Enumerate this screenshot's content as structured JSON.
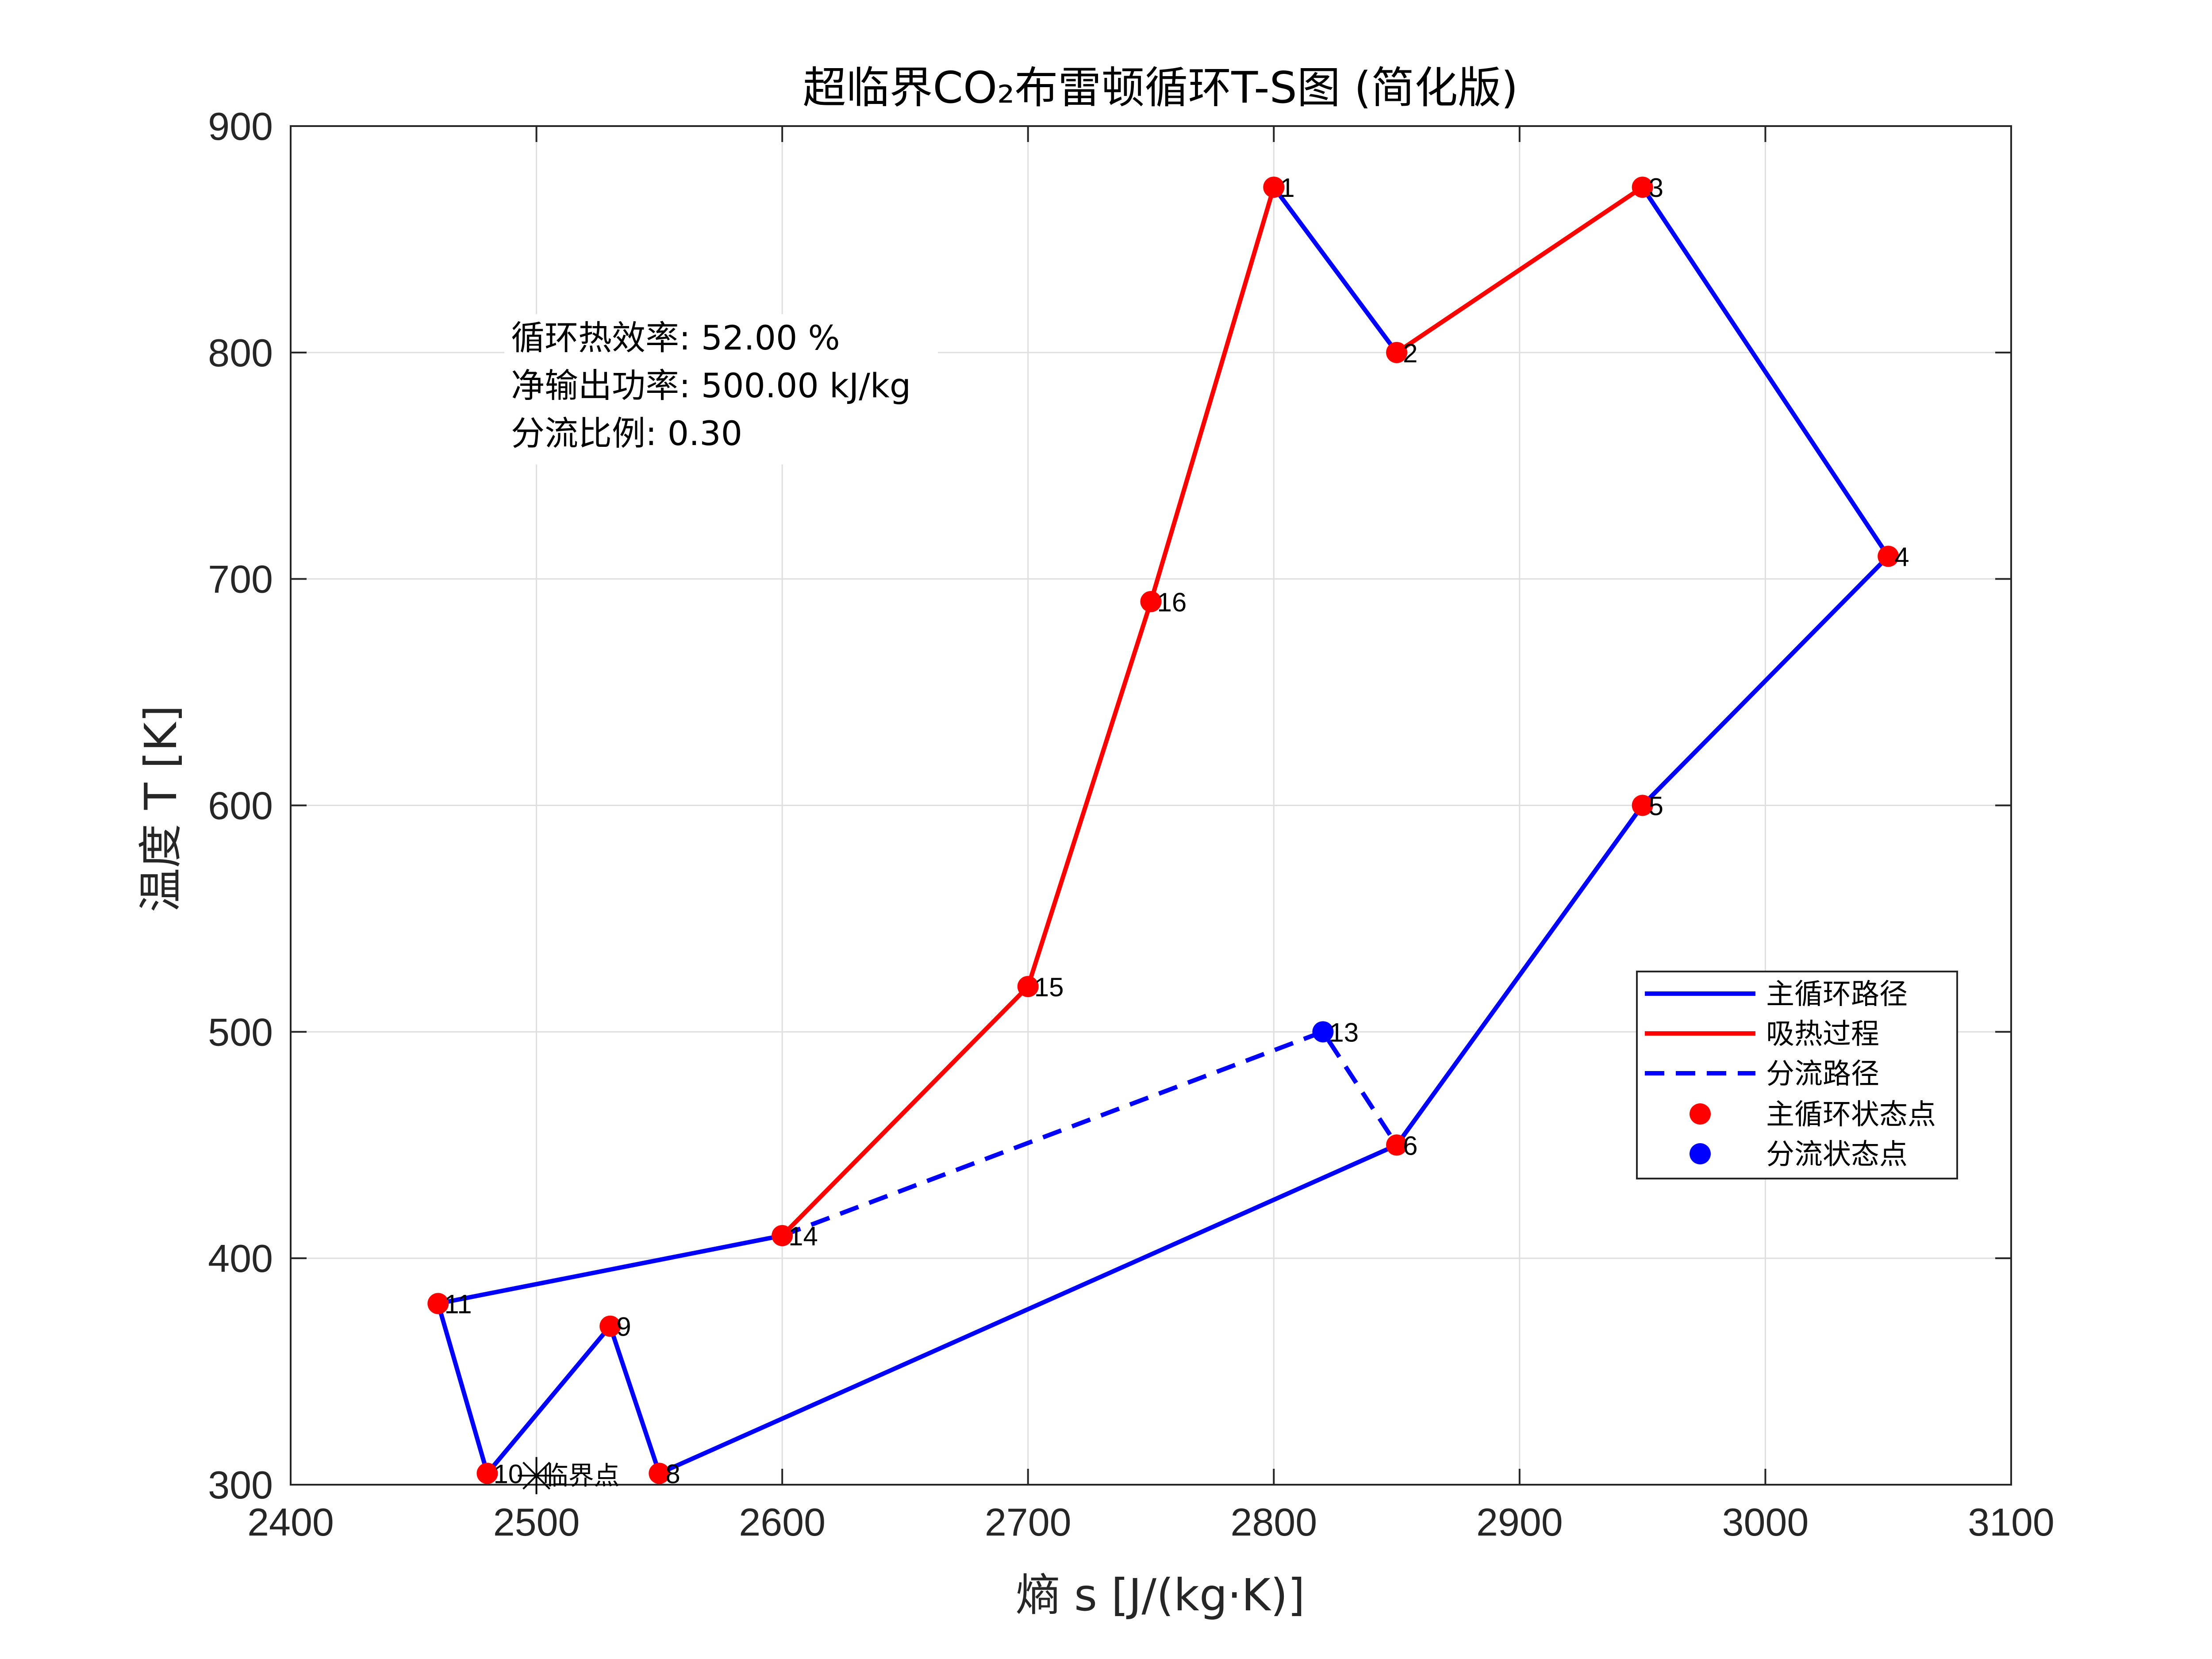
{
  "chart_data": {
    "type": "line",
    "title": "超临界CO₂布雷顿循环T-S图 (简化版)",
    "xlabel": "熵 s [J/(kg·K)]",
    "ylabel": "温度 T [K]",
    "xlim": [
      2400,
      3100
    ],
    "ylim": [
      300,
      900
    ],
    "xticks": [
      2400,
      2500,
      2600,
      2700,
      2800,
      2900,
      3000,
      3100
    ],
    "yticks": [
      300,
      400,
      500,
      600,
      700,
      800,
      900
    ],
    "grid": true,
    "legend_position": "lower-right",
    "colors": {
      "main": "#0000FF",
      "heat": "#FF0000",
      "split": "#0000FF"
    },
    "points": [
      {
        "label": "1",
        "s": 2800,
        "T": 873
      },
      {
        "label": "2",
        "s": 2850,
        "T": 800
      },
      {
        "label": "3",
        "s": 2950,
        "T": 873
      },
      {
        "label": "4",
        "s": 3050,
        "T": 710
      },
      {
        "label": "5",
        "s": 2950,
        "T": 600
      },
      {
        "label": "6",
        "s": 2850,
        "T": 450
      },
      {
        "label": "8",
        "s": 2550,
        "T": 305
      },
      {
        "label": "9",
        "s": 2530,
        "T": 370
      },
      {
        "label": "10",
        "s": 2480,
        "T": 305
      },
      {
        "label": "11",
        "s": 2460,
        "T": 380
      },
      {
        "label": "13",
        "s": 2820,
        "T": 500
      },
      {
        "label": "14",
        "s": 2600,
        "T": 410
      },
      {
        "label": "15",
        "s": 2700,
        "T": 520
      },
      {
        "label": "16",
        "s": 2750,
        "T": 690
      }
    ],
    "series": [
      {
        "name": "主循环路径",
        "style": "solid",
        "color": "#0000FF",
        "segments": [
          [
            [
              2800,
              873
            ],
            [
              2850,
              800
            ]
          ],
          [
            [
              2950,
              873
            ],
            [
              3050,
              710
            ],
            [
              2950,
              600
            ],
            [
              2850,
              450
            ],
            [
              2550,
              305
            ],
            [
              2530,
              370
            ],
            [
              2480,
              305
            ],
            [
              2460,
              380
            ],
            [
              2600,
              410
            ]
          ]
        ]
      },
      {
        "name": "吸热过程",
        "style": "solid",
        "color": "#FF0000",
        "segments": [
          [
            [
              2600,
              410
            ],
            [
              2700,
              520
            ],
            [
              2750,
              690
            ],
            [
              2800,
              873
            ]
          ],
          [
            [
              2850,
              800
            ],
            [
              2950,
              873
            ]
          ]
        ]
      },
      {
        "name": "分流路径",
        "style": "dashed",
        "color": "#0000FF",
        "segments": [
          [
            [
              2600,
              410
            ],
            [
              2820,
              500
            ],
            [
              2850,
              450
            ]
          ]
        ]
      },
      {
        "name": "主循环状态点",
        "style": "marker",
        "color": "#FF0000",
        "point_labels": [
          "1",
          "2",
          "3",
          "4",
          "5",
          "6",
          "8",
          "9",
          "10",
          "11",
          "14",
          "15",
          "16"
        ]
      },
      {
        "name": "分流状态点",
        "style": "marker",
        "color": "#0000FF",
        "point_labels": [
          "13"
        ]
      }
    ],
    "critical_point": {
      "s": 2500,
      "T": 304,
      "label": "临界点"
    },
    "annotations": [
      "循环热效率: 52.00 %",
      "净输出功率: 500.00 kJ/kg",
      "分流比例: 0.30"
    ]
  }
}
